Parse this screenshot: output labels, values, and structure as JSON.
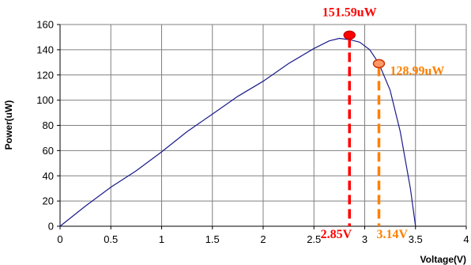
{
  "chart_data": {
    "type": "line",
    "title": "",
    "xlabel": "Voltage(V)",
    "ylabel": "Power(uW)",
    "xlim": [
      0,
      4
    ],
    "ylim": [
      0,
      160
    ],
    "xticks": [
      "0",
      "0.5",
      "1",
      "1.5",
      "2",
      "2.5",
      "3",
      "3.5",
      "4"
    ],
    "yticks": [
      "0",
      "20",
      "40",
      "60",
      "80",
      "100",
      "120",
      "140",
      "160"
    ],
    "grid": true,
    "legend": "none",
    "line_color": "#1a1a8c",
    "series": [
      {
        "x": [
          0,
          0.25,
          0.5,
          0.75,
          1.0,
          1.25,
          1.5,
          1.75,
          2.0,
          2.25,
          2.5,
          2.65,
          2.75,
          2.85,
          2.95,
          3.05,
          3.14,
          3.25,
          3.35,
          3.45,
          3.5
        ],
        "y": [
          0,
          16,
          31,
          44,
          59,
          75,
          89,
          103,
          115,
          129,
          141,
          147,
          149,
          148,
          146,
          140,
          129,
          108,
          75,
          30,
          0
        ]
      }
    ],
    "annotations": [
      {
        "x": 2.85,
        "y": 151.59,
        "power_label": "151.59uW",
        "voltage_label": "2.85V",
        "color": "#ff0000",
        "marker_fill": "#ff0000",
        "marker_stroke": "#cc0000"
      },
      {
        "x": 3.14,
        "y": 128.99,
        "power_label": "128.99uW",
        "voltage_label": "3.14V",
        "color": "#ff8000",
        "marker_fill": "#ff9966",
        "marker_stroke": "#cc3300"
      }
    ]
  }
}
